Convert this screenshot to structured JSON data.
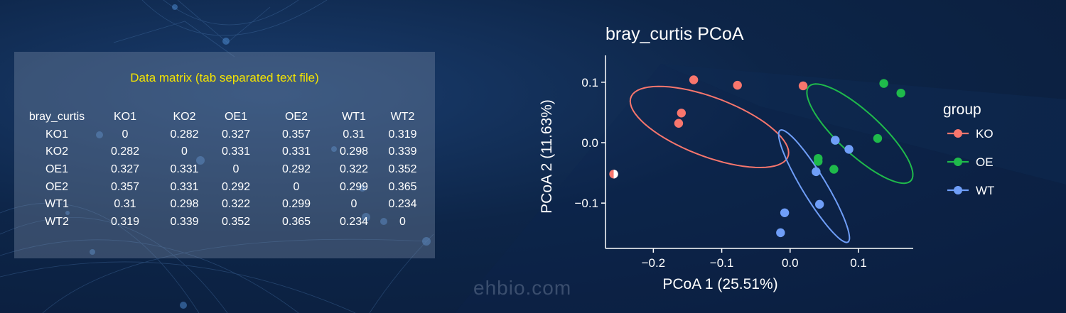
{
  "watermark": "ehbio.com",
  "matrix": {
    "title": "Data matrix  (tab separated text file)",
    "corner": "bray_curtis",
    "columns": [
      "KO1",
      "KO2",
      "OE1",
      "OE2",
      "WT1",
      "WT2"
    ],
    "rows": [
      {
        "name": "KO1",
        "values": [
          "0",
          "0.282",
          "0.327",
          "0.357",
          "0.31",
          "0.319"
        ]
      },
      {
        "name": "KO2",
        "values": [
          "0.282",
          "0",
          "0.331",
          "0.331",
          "0.298",
          "0.339"
        ]
      },
      {
        "name": "OE1",
        "values": [
          "0.327",
          "0.331",
          "0",
          "0.292",
          "0.322",
          "0.352"
        ]
      },
      {
        "name": "OE2",
        "values": [
          "0.357",
          "0.331",
          "0.292",
          "0",
          "0.299",
          "0.365"
        ]
      },
      {
        "name": "WT1",
        "values": [
          "0.31",
          "0.298",
          "0.322",
          "0.299",
          "0",
          "0.234"
        ]
      },
      {
        "name": "WT2",
        "values": [
          "0.319",
          "0.339",
          "0.352",
          "0.365",
          "0.234",
          "0"
        ]
      }
    ]
  },
  "chart_data": {
    "type": "scatter",
    "title": "bray_curtis PCoA",
    "xlabel": "PCoA 1 (25.51%)",
    "ylabel": "PCoA 2 (11.63%)",
    "xlim": [
      -0.27,
      0.18
    ],
    "ylim": [
      -0.175,
      0.148
    ],
    "xticks": [
      -0.2,
      -0.1,
      0.0,
      0.1
    ],
    "xtick_labels": [
      "−0.2",
      "−0.1",
      "0.0",
      "0.1"
    ],
    "yticks": [
      -0.1,
      0.0,
      0.1
    ],
    "ytick_labels": [
      "−0.1",
      "0.0",
      "0.1"
    ],
    "grid": false,
    "legend": {
      "title": "group",
      "position": "right"
    },
    "series": [
      {
        "name": "KO",
        "color": "#f8766d",
        "points": [
          [
            -0.141,
            0.104
          ],
          [
            -0.077,
            0.095
          ],
          [
            0.019,
            0.094
          ],
          [
            -0.159,
            0.049
          ],
          [
            -0.163,
            0.032
          ],
          [
            -0.258,
            -0.052
          ]
        ],
        "ellipse": {
          "center": [
            -0.118,
            0.026
          ],
          "rx": 0.125,
          "ry": 0.048,
          "angle_deg": -24
        }
      },
      {
        "name": "OE",
        "color": "#1fba4b",
        "points": [
          [
            0.137,
            0.098
          ],
          [
            0.162,
            0.082
          ],
          [
            0.128,
            0.007
          ],
          [
            0.066,
            0.004
          ],
          [
            0.041,
            -0.026
          ],
          [
            0.041,
            -0.031
          ],
          [
            0.064,
            -0.044
          ]
        ],
        "ellipse": {
          "center": [
            0.102,
            0.015
          ],
          "rx": 0.108,
          "ry": 0.033,
          "angle_deg": -47
        }
      },
      {
        "name": "WT",
        "color": "#6f9ef8",
        "points": [
          [
            0.086,
            -0.011
          ],
          [
            0.066,
            0.004
          ],
          [
            0.038,
            -0.048
          ],
          [
            0.043,
            -0.102
          ],
          [
            -0.008,
            -0.116
          ],
          [
            -0.014,
            -0.149
          ]
        ],
        "ellipse": {
          "center": [
            0.035,
            -0.072
          ],
          "rx": 0.105,
          "ry": 0.018,
          "angle_deg": -62
        }
      }
    ]
  }
}
